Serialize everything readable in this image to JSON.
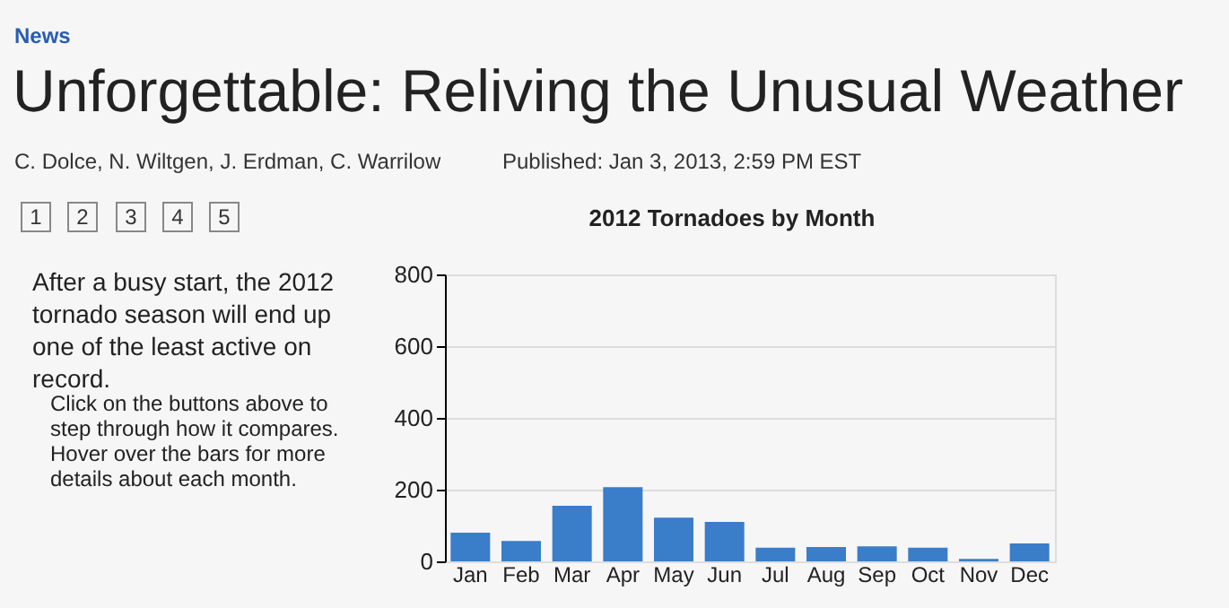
{
  "chart_data": {
    "type": "bar",
    "title": "2012 Tornadoes by Month",
    "categories": [
      "Jan",
      "Feb",
      "Mar",
      "Apr",
      "May",
      "Jun",
      "Jul",
      "Aug",
      "Sep",
      "Oct",
      "Nov",
      "Dec"
    ],
    "values": [
      80,
      57,
      155,
      207,
      122,
      110,
      38,
      40,
      42,
      38,
      7,
      50
    ],
    "color": "#3a7dc9",
    "ylim": [
      0,
      800
    ],
    "yticks": [
      0,
      200,
      400,
      600,
      800
    ],
    "grid": "y",
    "annotations": [
      "News",
      "Unforgettable: Reliving the Unusual Weather",
      "C. Dolce, N. Wiltgen, J. Erdman, C. Warrilow",
      "Published: Jan 3, 2013, 2:59 PM EST",
      "1",
      "2",
      "3",
      "4",
      "5",
      "After a busy start, the 2012 tornado season will end up one of the least active on record.",
      "Click on the buttons above to step through how it compares. Hover over the bars for more details about each month."
    ]
  }
}
